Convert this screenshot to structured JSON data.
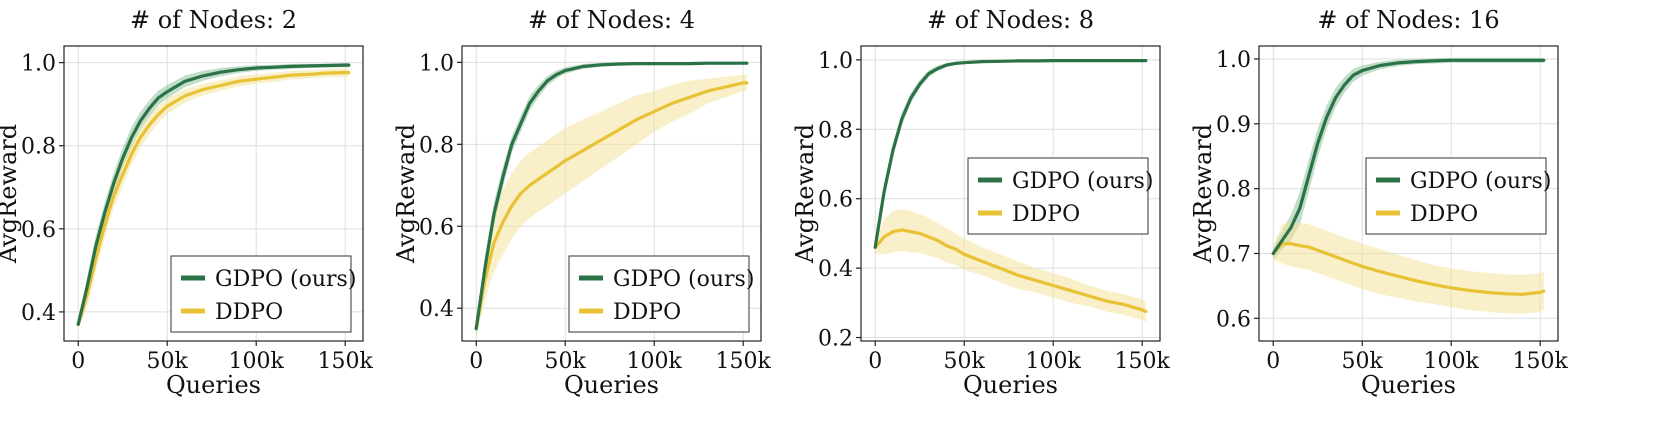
{
  "colors": {
    "gdpo": "#2b7347",
    "gdpo_band": "#8fc39f",
    "ddpo": "#e8c234",
    "ddpo_band": "#f4e29a"
  },
  "chart_data": [
    {
      "type": "line",
      "title": "# of Nodes: 2",
      "xlabel": "Queries",
      "ylabel": "AvgReward",
      "xlim": [
        -8000,
        160000
      ],
      "ylim": [
        0.33,
        1.04
      ],
      "xticks": [
        0,
        50000,
        100000,
        150000
      ],
      "xtick_labels": [
        "0",
        "50k",
        "100k",
        "150k"
      ],
      "yticks": [
        0.4,
        0.6,
        0.8,
        1.0
      ],
      "ytick_labels": [
        "0.4",
        "0.6",
        "0.8",
        "1.0"
      ],
      "legend_position": "bottom-right",
      "x": [
        0,
        5000,
        10000,
        15000,
        20000,
        25000,
        30000,
        35000,
        40000,
        45000,
        50000,
        60000,
        70000,
        80000,
        90000,
        100000,
        110000,
        120000,
        130000,
        140000,
        150000,
        152000
      ],
      "series": [
        {
          "name": "GDPO (ours)",
          "color_key": "gdpo",
          "band_key": "gdpo_band",
          "values": [
            0.37,
            0.46,
            0.56,
            0.64,
            0.71,
            0.77,
            0.82,
            0.86,
            0.89,
            0.915,
            0.93,
            0.955,
            0.968,
            0.977,
            0.983,
            0.987,
            0.989,
            0.991,
            0.992,
            0.993,
            0.994,
            0.994
          ],
          "band": [
            0.01,
            0.025,
            0.025,
            0.025,
            0.025,
            0.025,
            0.025,
            0.022,
            0.02,
            0.018,
            0.016,
            0.014,
            0.012,
            0.01,
            0.008,
            0.007,
            0.006,
            0.006,
            0.005,
            0.005,
            0.005,
            0.005
          ]
        },
        {
          "name": "DDPO",
          "color_key": "ddpo",
          "band_key": "ddpo_band",
          "values": [
            0.37,
            0.44,
            0.53,
            0.61,
            0.68,
            0.73,
            0.78,
            0.82,
            0.85,
            0.875,
            0.895,
            0.92,
            0.935,
            0.945,
            0.955,
            0.96,
            0.965,
            0.97,
            0.972,
            0.975,
            0.976,
            0.976
          ],
          "band": [
            0.01,
            0.03,
            0.03,
            0.03,
            0.03,
            0.028,
            0.026,
            0.024,
            0.022,
            0.02,
            0.018,
            0.016,
            0.014,
            0.013,
            0.012,
            0.011,
            0.011,
            0.01,
            0.01,
            0.01,
            0.01,
            0.01
          ]
        }
      ]
    },
    {
      "type": "line",
      "title": "# of Nodes: 4",
      "xlabel": "Queries",
      "ylabel": "AvgReward",
      "xlim": [
        -8000,
        160000
      ],
      "ylim": [
        0.32,
        1.04
      ],
      "xticks": [
        0,
        50000,
        100000,
        150000
      ],
      "xtick_labels": [
        "0",
        "50k",
        "100k",
        "150k"
      ],
      "yticks": [
        0.4,
        0.6,
        0.8,
        1.0
      ],
      "ytick_labels": [
        "0.4",
        "0.6",
        "0.8",
        "1.0"
      ],
      "legend_position": "bottom-right",
      "x": [
        0,
        5000,
        10000,
        15000,
        20000,
        25000,
        30000,
        35000,
        40000,
        45000,
        50000,
        60000,
        70000,
        80000,
        90000,
        100000,
        110000,
        120000,
        130000,
        140000,
        150000,
        152000
      ],
      "series": [
        {
          "name": "GDPO (ours)",
          "color_key": "gdpo",
          "band_key": "gdpo_band",
          "values": [
            0.35,
            0.5,
            0.63,
            0.72,
            0.8,
            0.85,
            0.9,
            0.93,
            0.955,
            0.97,
            0.98,
            0.99,
            0.994,
            0.996,
            0.997,
            0.997,
            0.997,
            0.997,
            0.998,
            0.998,
            0.998,
            0.998
          ],
          "band": [
            0.02,
            0.03,
            0.03,
            0.025,
            0.02,
            0.02,
            0.018,
            0.015,
            0.012,
            0.01,
            0.008,
            0.006,
            0.005,
            0.004,
            0.004,
            0.004,
            0.004,
            0.004,
            0.004,
            0.004,
            0.004,
            0.004
          ]
        },
        {
          "name": "DDPO",
          "color_key": "ddpo",
          "band_key": "ddpo_band",
          "values": [
            0.35,
            0.47,
            0.56,
            0.61,
            0.65,
            0.68,
            0.7,
            0.715,
            0.73,
            0.745,
            0.76,
            0.785,
            0.81,
            0.835,
            0.86,
            0.88,
            0.9,
            0.915,
            0.93,
            0.94,
            0.95,
            0.95
          ],
          "band": [
            0.02,
            0.05,
            0.07,
            0.08,
            0.08,
            0.08,
            0.08,
            0.08,
            0.08,
            0.08,
            0.08,
            0.075,
            0.07,
            0.065,
            0.06,
            0.05,
            0.045,
            0.04,
            0.03,
            0.025,
            0.02,
            0.02
          ]
        }
      ]
    },
    {
      "type": "line",
      "title": "# of Nodes: 8",
      "xlabel": "Queries",
      "ylabel": "AvgReward",
      "xlim": [
        -8000,
        160000
      ],
      "ylim": [
        0.19,
        1.04
      ],
      "xticks": [
        0,
        50000,
        100000,
        150000
      ],
      "xtick_labels": [
        "0",
        "50k",
        "100k",
        "150k"
      ],
      "yticks": [
        0.2,
        0.4,
        0.6,
        0.8,
        1.0
      ],
      "ytick_labels": [
        "0.2",
        "0.4",
        "0.6",
        "0.8",
        "1.0"
      ],
      "legend_position": "center-right",
      "x": [
        0,
        5000,
        10000,
        15000,
        20000,
        25000,
        30000,
        35000,
        40000,
        45000,
        50000,
        60000,
        70000,
        80000,
        90000,
        100000,
        110000,
        120000,
        130000,
        140000,
        150000,
        152000
      ],
      "series": [
        {
          "name": "GDPO (ours)",
          "color_key": "gdpo",
          "band_key": "gdpo_band",
          "values": [
            0.46,
            0.62,
            0.74,
            0.83,
            0.89,
            0.93,
            0.96,
            0.975,
            0.985,
            0.99,
            0.992,
            0.995,
            0.996,
            0.997,
            0.997,
            0.998,
            0.998,
            0.998,
            0.998,
            0.998,
            0.998,
            0.998
          ],
          "band": [
            0.02,
            0.025,
            0.02,
            0.018,
            0.015,
            0.012,
            0.01,
            0.008,
            0.006,
            0.005,
            0.004,
            0.003,
            0.003,
            0.003,
            0.003,
            0.003,
            0.003,
            0.003,
            0.003,
            0.003,
            0.003,
            0.003
          ]
        },
        {
          "name": "DDPO",
          "color_key": "ddpo",
          "band_key": "ddpo_band",
          "values": [
            0.46,
            0.49,
            0.505,
            0.51,
            0.505,
            0.5,
            0.49,
            0.48,
            0.465,
            0.455,
            0.44,
            0.42,
            0.4,
            0.38,
            0.365,
            0.35,
            0.335,
            0.32,
            0.305,
            0.295,
            0.28,
            0.275
          ],
          "band": [
            0.02,
            0.05,
            0.06,
            0.06,
            0.06,
            0.055,
            0.055,
            0.05,
            0.05,
            0.045,
            0.045,
            0.04,
            0.04,
            0.04,
            0.035,
            0.035,
            0.035,
            0.03,
            0.03,
            0.03,
            0.03,
            0.03
          ]
        }
      ]
    },
    {
      "type": "line",
      "title": "# of Nodes: 16",
      "xlabel": "Queries",
      "ylabel": "AvgReward",
      "xlim": [
        -8000,
        160000
      ],
      "ylim": [
        0.565,
        1.02
      ],
      "xticks": [
        0,
        50000,
        100000,
        150000
      ],
      "xtick_labels": [
        "0",
        "50k",
        "100k",
        "150k"
      ],
      "yticks": [
        0.6,
        0.7,
        0.8,
        0.9,
        1.0
      ],
      "ytick_labels": [
        "0.6",
        "0.7",
        "0.8",
        "0.9",
        "1.0"
      ],
      "legend_position": "center-right",
      "x": [
        0,
        5000,
        10000,
        15000,
        20000,
        25000,
        30000,
        35000,
        40000,
        45000,
        50000,
        60000,
        70000,
        80000,
        90000,
        100000,
        110000,
        120000,
        130000,
        140000,
        150000,
        152000
      ],
      "series": [
        {
          "name": "GDPO (ours)",
          "color_key": "gdpo",
          "band_key": "gdpo_band",
          "values": [
            0.7,
            0.72,
            0.74,
            0.77,
            0.82,
            0.87,
            0.91,
            0.94,
            0.96,
            0.975,
            0.982,
            0.99,
            0.994,
            0.996,
            0.997,
            0.998,
            0.998,
            0.998,
            0.998,
            0.998,
            0.998,
            0.998
          ],
          "band": [
            0.01,
            0.015,
            0.02,
            0.025,
            0.025,
            0.022,
            0.018,
            0.015,
            0.012,
            0.01,
            0.008,
            0.006,
            0.005,
            0.004,
            0.004,
            0.004,
            0.004,
            0.004,
            0.004,
            0.004,
            0.004,
            0.004
          ]
        },
        {
          "name": "DDPO",
          "color_key": "ddpo",
          "band_key": "ddpo_band",
          "values": [
            0.7,
            0.715,
            0.715,
            0.712,
            0.71,
            0.705,
            0.7,
            0.695,
            0.69,
            0.685,
            0.68,
            0.672,
            0.665,
            0.658,
            0.652,
            0.647,
            0.643,
            0.64,
            0.638,
            0.637,
            0.64,
            0.642
          ],
          "band": [
            0.01,
            0.03,
            0.035,
            0.035,
            0.035,
            0.035,
            0.035,
            0.035,
            0.035,
            0.035,
            0.035,
            0.035,
            0.033,
            0.032,
            0.03,
            0.03,
            0.03,
            0.03,
            0.03,
            0.03,
            0.03,
            0.03
          ]
        }
      ]
    }
  ]
}
